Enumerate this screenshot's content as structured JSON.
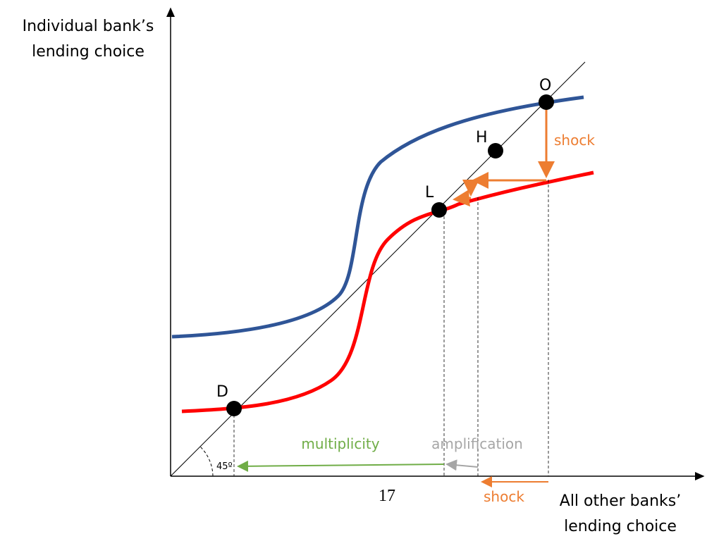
{
  "axes": {
    "y_label": [
      "Individual bank’s",
      "lending choice"
    ],
    "x_label": [
      "All other banks’",
      "lending choice"
    ]
  },
  "points": [
    {
      "label": "O"
    },
    {
      "label": "H"
    },
    {
      "label": "L"
    },
    {
      "label": "D"
    }
  ],
  "annotations": {
    "shock_vertical": "shock",
    "shock_horizontal": "shock",
    "multiplicity": "multiplicity",
    "amplification": "amplification",
    "angle": "45º"
  },
  "page_number": "17"
}
